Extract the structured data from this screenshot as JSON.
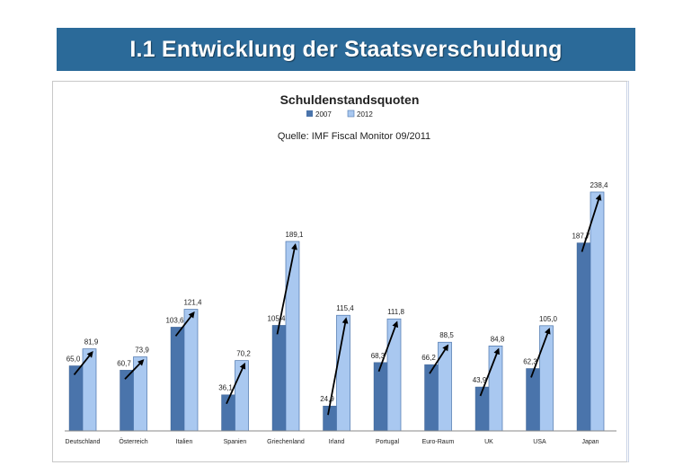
{
  "slide": {
    "title": "I.1  Entwicklung der Staatsverschuldung"
  },
  "chart_data": {
    "type": "bar",
    "title": "Schuldenstandsquoten",
    "subtitle": "Quelle:  IMF Fiscal Monitor 09/2011",
    "categories": [
      "Deutschland",
      "Österreich",
      "Italien",
      "Spanien",
      "Griechenland",
      "Irland",
      "Portugal",
      "Euro-Raum",
      "UK",
      "USA",
      "Japan"
    ],
    "series": [
      {
        "name": "2007",
        "color": "#4a74ab",
        "values": [
          65.0,
          60.7,
          103.6,
          36.1,
          105.4,
          24.9,
          68.3,
          66.2,
          43.9,
          62.3,
          187.7
        ],
        "labels": [
          "65,0",
          "60,7",
          "103,6",
          "36,1",
          "105,4",
          "24,9",
          "68,3",
          "66,2",
          "43,9",
          "62,3",
          "187,7"
        ]
      },
      {
        "name": "2012",
        "color": "#a9c8f0",
        "values": [
          81.9,
          73.9,
          121.4,
          70.2,
          189.1,
          115.4,
          111.8,
          88.5,
          84.8,
          105.0,
          238.4
        ],
        "labels": [
          "81,9",
          "73,9",
          "121,4",
          "70,2",
          "189,1",
          "115,4",
          "111,8",
          "88,5",
          "84,8",
          "105,0",
          "238,4"
        ]
      }
    ],
    "ylim": [
      0,
      250
    ],
    "legend_position": "top-center",
    "grid": false,
    "annotations": "arrows from each 2007 bar top to the 2012 bar top"
  }
}
